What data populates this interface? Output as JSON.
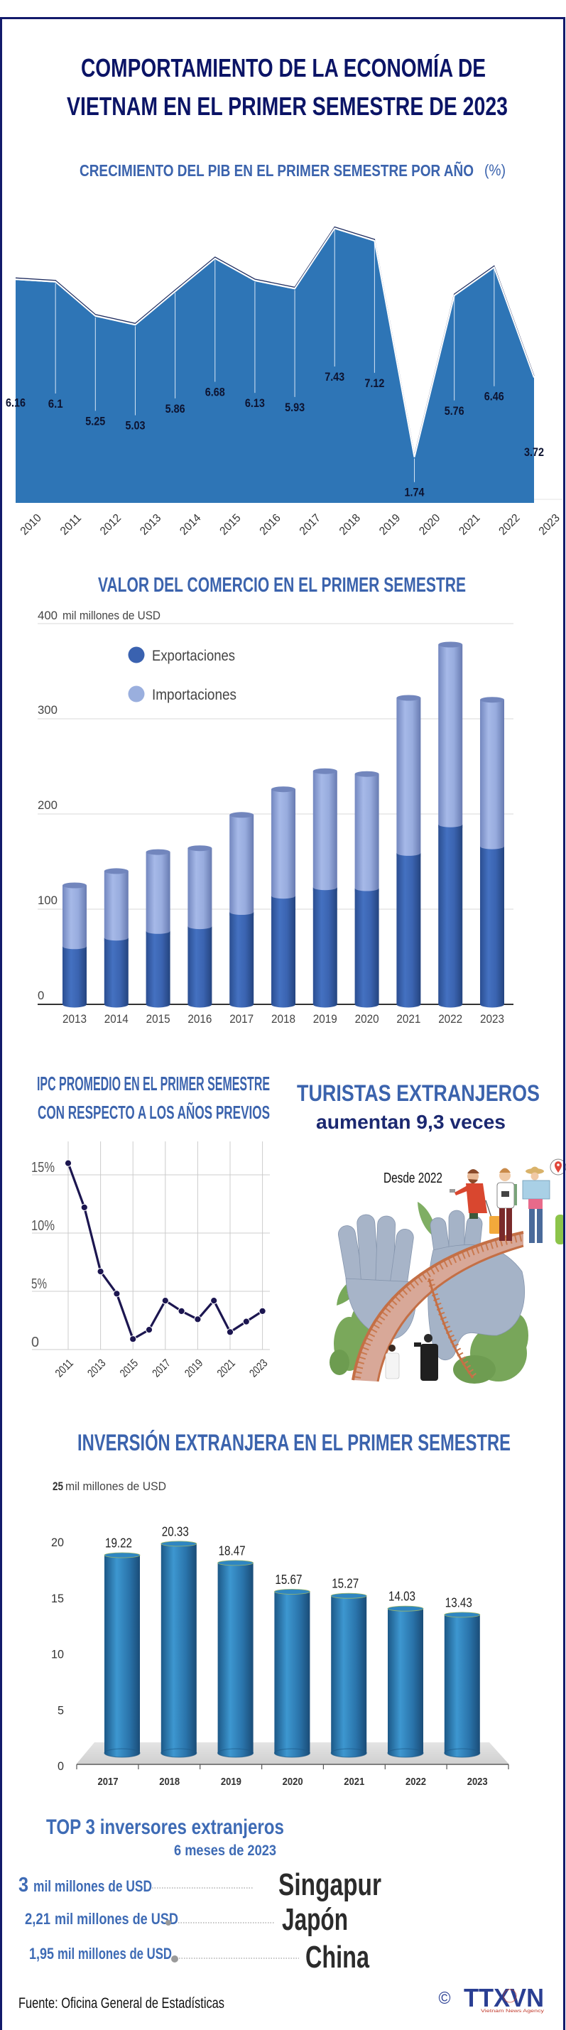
{
  "header": {
    "title_line1": "COMPORTAMIENTO DE LA ECONOMÍA DE",
    "title_line2": "VIETNAM EN EL PRIMER SEMESTRE DE 2023"
  },
  "gdp": {
    "title": "CRECIMIENTO DEL PIB EN EL PRIMER SEMESTRE POR AÑO",
    "unit": "(%)"
  },
  "trade": {
    "title": "VALOR DEL COMERCIO EN EL PRIMER SEMESTRE",
    "unit_value": "400",
    "unit_label": "mil millones de USD",
    "legend": [
      {
        "label": "Exportaciones",
        "color": "#3a62b0"
      },
      {
        "label": "Importaciones",
        "color": "#9aafde"
      }
    ]
  },
  "cpi": {
    "title_line1": "IPC PROMEDIO EN EL PRIMER SEMESTRE",
    "title_line2": "CON RESPECTO A LOS AÑOS PREVIOS"
  },
  "tourism": {
    "title": "TURISTAS EXTRANJEROS",
    "subtitle": "aumentan 9,3 veces",
    "since": "Desde 2022"
  },
  "fdi": {
    "title": "INVERSIÓN EXTRANJERA EN EL PRIMER SEMESTRE",
    "unit_value": "25",
    "unit_label": "mil millones de USD"
  },
  "top_investors": {
    "title": "TOP 3 inversores extranjeros",
    "period": "6 meses de 2023",
    "items": [
      {
        "amount": "3",
        "unit": "mil millones de USD",
        "country": "Singapur"
      },
      {
        "amount": "2,21",
        "unit": "mil millones de USD",
        "country": "Japón"
      },
      {
        "amount": "1,95",
        "unit": "mil millones de USD",
        "country": "China"
      }
    ]
  },
  "footer": {
    "source": "Fuente: Oficina General de Estadísticas",
    "copyright": "©",
    "logo": "TTXVN",
    "agency": "Vietnam News Agency"
  },
  "colors": {
    "border": "#121a6b",
    "main_title": "#0b1466",
    "section_title": "#3b63ad",
    "gdp_area": "#2e75b6",
    "exports": "#3a62b0",
    "imports": "#9aafde",
    "cpi_line": "#1c1650",
    "fdi_bar": "#2a7ab5",
    "logo": "#2a3f93",
    "agency": "#c0392b"
  },
  "chart_data": [
    {
      "id": "gdp_growth",
      "type": "area",
      "title": "CRECIMIENTO DEL PIB EN EL PRIMER SEMESTRE POR AÑO (%)",
      "xlabel": "",
      "ylabel": "%",
      "categories": [
        "2010",
        "2011",
        "2012",
        "2013",
        "2014",
        "2015",
        "2016",
        "2017",
        "2018",
        "2019",
        "2020",
        "2021",
        "2022",
        "2023"
      ],
      "values": [
        6.16,
        6.1,
        5.25,
        5.03,
        5.86,
        6.68,
        6.13,
        5.93,
        7.43,
        7.12,
        1.74,
        5.76,
        6.46,
        3.72
      ],
      "data_labels": true,
      "grid": false
    },
    {
      "id": "trade_value",
      "type": "bar",
      "stacked": true,
      "title": "VALOR DEL COMERCIO EN EL PRIMER SEMESTRE",
      "xlabel": "",
      "ylabel": "mil millones de USD",
      "categories": [
        "2013",
        "2014",
        "2015",
        "2016",
        "2017",
        "2018",
        "2019",
        "2020",
        "2021",
        "2022",
        "2023"
      ],
      "series": [
        {
          "name": "Exportaciones",
          "values": [
            61,
            70,
            77,
            82,
            97,
            114,
            123,
            122,
            159,
            189,
            166
          ]
        },
        {
          "name": "Importaciones",
          "values": [
            64,
            70,
            83,
            82,
            102,
            112,
            122,
            120,
            163,
            189,
            154
          ]
        }
      ],
      "ylim": [
        0,
        400
      ],
      "yticks": [
        0,
        100,
        200,
        300,
        400
      ],
      "grid": true,
      "legend_position": "top-left"
    },
    {
      "id": "cpi_average",
      "type": "line",
      "title": "IPC PROMEDIO EN EL PRIMER SEMESTRE CON RESPECTO A LOS AÑOS PREVIOS",
      "x": [
        "2011",
        "2012",
        "2013",
        "2014",
        "2015",
        "2016",
        "2017",
        "2018",
        "2019",
        "2020",
        "2021",
        "2022",
        "2023"
      ],
      "values": [
        16.0,
        12.2,
        6.7,
        4.8,
        0.9,
        1.7,
        4.2,
        3.3,
        2.6,
        4.2,
        1.5,
        2.4,
        3.3
      ],
      "ylim": [
        0,
        17
      ],
      "yticks": [
        0,
        5,
        10,
        15
      ],
      "ytick_labels": [
        "0",
        "5%",
        "10%",
        "15%"
      ],
      "xtick_labels": [
        "2011",
        "2013",
        "2015",
        "2017",
        "2019",
        "2021",
        "2023"
      ],
      "grid": true
    },
    {
      "id": "fdi",
      "type": "bar",
      "title": "INVERSIÓN EXTRANJERA EN EL PRIMER SEMESTRE",
      "xlabel": "",
      "ylabel": "mil millones de USD",
      "categories": [
        "2017",
        "2018",
        "2019",
        "2020",
        "2021",
        "2022",
        "2023"
      ],
      "values": [
        19.22,
        20.33,
        18.47,
        15.67,
        15.27,
        14.03,
        13.43
      ],
      "ylim": [
        0,
        25
      ],
      "yticks": [
        0,
        5,
        10,
        15,
        20,
        25
      ],
      "data_labels": true,
      "grid": false
    }
  ]
}
